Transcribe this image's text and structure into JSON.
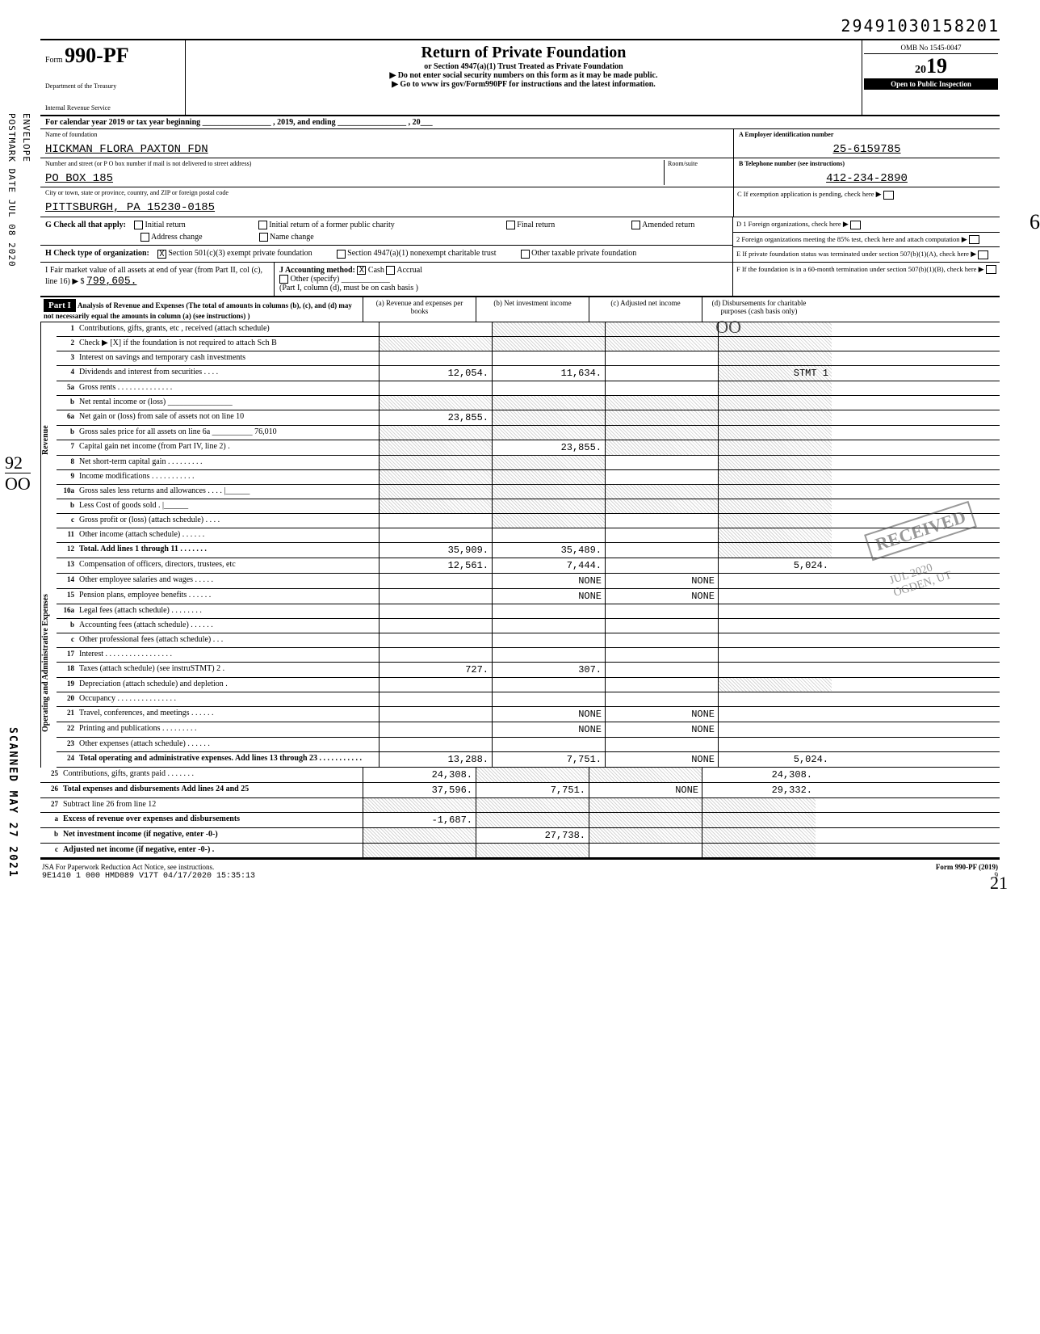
{
  "top_number": "29491030158201",
  "form": {
    "prefix": "Form",
    "number": "990-PF",
    "dept1": "Department of the Treasury",
    "dept2": "Internal Revenue Service",
    "title": "Return of Private Foundation",
    "sub": "or Section 4947(a)(1) Trust Treated as Private Foundation",
    "note1": "▶ Do not enter social security numbers on this form as it may be made public.",
    "note2": "▶ Go to www irs gov/Form990PF for instructions and the latest information.",
    "omb": "OMB No 1545-0047",
    "year_lead": "20",
    "year_bold": "19",
    "open": "Open to Public Inspection"
  },
  "calendar": "For calendar year 2019 or tax year beginning _________________ , 2019, and ending _________________ , 20___",
  "foundation": {
    "name_label": "Name of foundation",
    "name": "HICKMAN FLORA PAXTON FDN",
    "addr_label": "Number and street (or P O  box number if mail is not delivered to street address)",
    "room_label": "Room/suite",
    "addr": "PO BOX 185",
    "city_label": "City or town, state or province, country, and ZIP or foreign postal code",
    "city": "PITTSBURGH, PA 15230-0185",
    "ein_label": "A  Employer identification number",
    "ein": "25-6159785",
    "phone_label": "B  Telephone number (see instructions)",
    "phone": "412-234-2890",
    "c_label": "C  If exemption application is pending, check here"
  },
  "checks": {
    "g": "G  Check all that apply:",
    "g1": "Initial return",
    "g2": "Final return",
    "g3": "Address change",
    "g4": "Initial return of a former public charity",
    "g5": "Amended return",
    "g6": "Name change",
    "h": "H  Check type of organization:",
    "h1": "Section 501(c)(3) exempt private foundation",
    "h2": "Section 4947(a)(1) nonexempt charitable trust",
    "h3": "Other taxable private foundation",
    "i": "I  Fair market value of all assets at end of year (from Part II, col (c), line 16) ▶ $",
    "i_val": "799,605.",
    "j": "J Accounting method:",
    "j1": "Cash",
    "j2": "Accrual",
    "j3": "Other (specify) ____________",
    "j_note": "(Part I, column (d), must be on cash basis )",
    "d1": "D  1  Foreign organizations, check here",
    "d2": "2  Foreign organizations meeting the 85% test, check here and attach computation",
    "e": "E  If private foundation status was terminated under section 507(b)(1)(A), check here",
    "f": "F  If the foundation is in a 60-month termination under section 507(b)(1)(B), check here"
  },
  "part1": {
    "header": "Part I",
    "desc": "Analysis of Revenue and Expenses (The total of amounts in columns (b), (c), and (d) may not necessarily equal the amounts in column (a) (see instructions) )",
    "col_a": "(a) Revenue and expenses per books",
    "col_b": "(b) Net investment income",
    "col_c": "(c) Adjusted net income",
    "col_d": "(d) Disbursements for charitable purposes (cash basis only)",
    "side_rev": "Revenue",
    "side_exp": "Operating and Administrative Expenses"
  },
  "lines": [
    {
      "no": "1",
      "desc": "Contributions, gifts, grants, etc , received (attach schedule)",
      "a": "",
      "b": "s",
      "c": "s",
      "d": "s"
    },
    {
      "no": "2",
      "desc": "Check ▶ [X] if the foundation is not required to attach Sch B",
      "a": "s",
      "b": "s",
      "c": "s",
      "d": "s"
    },
    {
      "no": "3",
      "desc": "Interest on savings and temporary cash investments",
      "a": "",
      "b": "",
      "c": "",
      "d": "s"
    },
    {
      "no": "4",
      "desc": "Dividends and interest from securities . . . .",
      "a": "12,054.",
      "b": "11,634.",
      "c": "",
      "d": "STMT 1",
      "d_shade": true
    },
    {
      "no": "5a",
      "desc": "Gross rents . . . . . . . . . . . . . .",
      "a": "",
      "b": "",
      "c": "",
      "d": "s"
    },
    {
      "no": "b",
      "desc": "Net rental income or (loss) ________________",
      "a": "s",
      "b": "s",
      "c": "s",
      "d": "s"
    },
    {
      "no": "6a",
      "desc": "Net gain or (loss) from sale of assets not on line 10",
      "a": "23,855.",
      "b": "s",
      "c": "s",
      "d": "s"
    },
    {
      "no": "b",
      "desc": "Gross sales price for all assets on line 6a __________ 76,010",
      "a": "s",
      "b": "s",
      "c": "s",
      "d": "s"
    },
    {
      "no": "7",
      "desc": "Capital gain net income (from Part IV, line 2) .",
      "a": "s",
      "b": "23,855.",
      "c": "s",
      "d": "s"
    },
    {
      "no": "8",
      "desc": "Net short-term capital gain . . . . . . . . .",
      "a": "s",
      "b": "s",
      "c": "",
      "d": "s"
    },
    {
      "no": "9",
      "desc": "Income modifications . . . . . . . . . . .",
      "a": "s",
      "b": "s",
      "c": "",
      "d": "s"
    },
    {
      "no": "10a",
      "desc": "Gross sales less returns and allowances . . . . |______",
      "a": "s",
      "b": "s",
      "c": "s",
      "d": "s"
    },
    {
      "no": "b",
      "desc": "Less Cost of goods sold  . |______",
      "a": "s",
      "b": "s",
      "c": "s",
      "d": "s"
    },
    {
      "no": "c",
      "desc": "Gross profit or (loss) (attach schedule) . . . .",
      "a": "",
      "b": "s",
      "c": "",
      "d": "s"
    },
    {
      "no": "11",
      "desc": "Other income (attach schedule) . . . . . .",
      "a": "",
      "b": "",
      "c": "",
      "d": "s"
    },
    {
      "no": "12",
      "desc": "Total. Add lines 1 through 11 . . . . . . .",
      "a": "35,909.",
      "b": "35,489.",
      "c": "",
      "d": "s",
      "bold": true
    },
    {
      "no": "13",
      "desc": "Compensation of officers, directors, trustees, etc",
      "a": "12,561.",
      "b": "7,444.",
      "c": "",
      "d": "5,024."
    },
    {
      "no": "14",
      "desc": "Other employee salaries and wages . . . . .",
      "a": "",
      "b": "NONE",
      "c": "NONE",
      "d": ""
    },
    {
      "no": "15",
      "desc": "Pension plans, employee benefits . . . . . .",
      "a": "",
      "b": "NONE",
      "c": "NONE",
      "d": ""
    },
    {
      "no": "16a",
      "desc": "Legal fees (attach schedule) . . . . . . . .",
      "a": "",
      "b": "",
      "c": "",
      "d": ""
    },
    {
      "no": "b",
      "desc": "Accounting fees (attach schedule) . . . . . .",
      "a": "",
      "b": "",
      "c": "",
      "d": ""
    },
    {
      "no": "c",
      "desc": "Other professional fees (attach schedule) . . .",
      "a": "",
      "b": "",
      "c": "",
      "d": ""
    },
    {
      "no": "17",
      "desc": "Interest . . . . . . . . . . . . . . . . .",
      "a": "",
      "b": "",
      "c": "",
      "d": ""
    },
    {
      "no": "18",
      "desc": "Taxes (attach schedule) (see instruSTMT) 2 .",
      "a": "727.",
      "b": "307.",
      "c": "",
      "d": ""
    },
    {
      "no": "19",
      "desc": "Depreciation (attach schedule) and depletion .",
      "a": "",
      "b": "",
      "c": "",
      "d": "s"
    },
    {
      "no": "20",
      "desc": "Occupancy . . . . . . . . . . . . . . .",
      "a": "",
      "b": "",
      "c": "",
      "d": ""
    },
    {
      "no": "21",
      "desc": "Travel, conferences, and meetings . . . . . .",
      "a": "",
      "b": "NONE",
      "c": "NONE",
      "d": ""
    },
    {
      "no": "22",
      "desc": "Printing and publications . . . . . . . . .",
      "a": "",
      "b": "NONE",
      "c": "NONE",
      "d": ""
    },
    {
      "no": "23",
      "desc": "Other expenses (attach schedule) . . . . . .",
      "a": "",
      "b": "",
      "c": "",
      "d": ""
    },
    {
      "no": "24",
      "desc": "Total operating and administrative expenses. Add lines 13 through 23 . . . . . . . . . . .",
      "a": "13,288.",
      "b": "7,751.",
      "c": "NONE",
      "d": "5,024.",
      "bold": true
    },
    {
      "no": "25",
      "desc": "Contributions, gifts, grants paid . . . . . . .",
      "a": "24,308.",
      "b": "s",
      "c": "s",
      "d": "24,308."
    },
    {
      "no": "26",
      "desc": "Total expenses and disbursements Add lines 24 and 25",
      "a": "37,596.",
      "b": "7,751.",
      "c": "NONE",
      "d": "29,332.",
      "bold": true
    },
    {
      "no": "27",
      "desc": "Subtract line 26 from line 12",
      "a": "s",
      "b": "s",
      "c": "s",
      "d": "s"
    },
    {
      "no": "a",
      "desc": "Excess of revenue over expenses and disbursements",
      "a": "-1,687.",
      "b": "s",
      "c": "s",
      "d": "s",
      "bold": true
    },
    {
      "no": "b",
      "desc": "Net investment income (if negative, enter -0-)",
      "a": "s",
      "b": "27,738.",
      "c": "s",
      "d": "s",
      "bold": true
    },
    {
      "no": "c",
      "desc": "Adjusted net income (if negative, enter -0-) .",
      "a": "s",
      "b": "s",
      "c": "",
      "d": "s",
      "bold": true
    }
  ],
  "footer": {
    "left": "JSA  For Paperwork Reduction Act Notice, see instructions.",
    "mid": "9E1410 1 000   HMD089 V17T 04/17/2020 15:35:13",
    "page": "9",
    "right": "Form 990-PF (2019)"
  },
  "margins": {
    "postmark": "POSTMARK DATE JUL 08 2020",
    "envelope": "ENVELOPE",
    "scanned": "SCANNED MAY 27 2021",
    "hand92": "92",
    "handoo_left": "OO",
    "hand_oo": "OO",
    "hand_6": "6",
    "hand_21": "21"
  },
  "stamp": {
    "line1": "RECEIVED",
    "line2": "JUL   2020",
    "line3": "OGDEN, UT"
  }
}
